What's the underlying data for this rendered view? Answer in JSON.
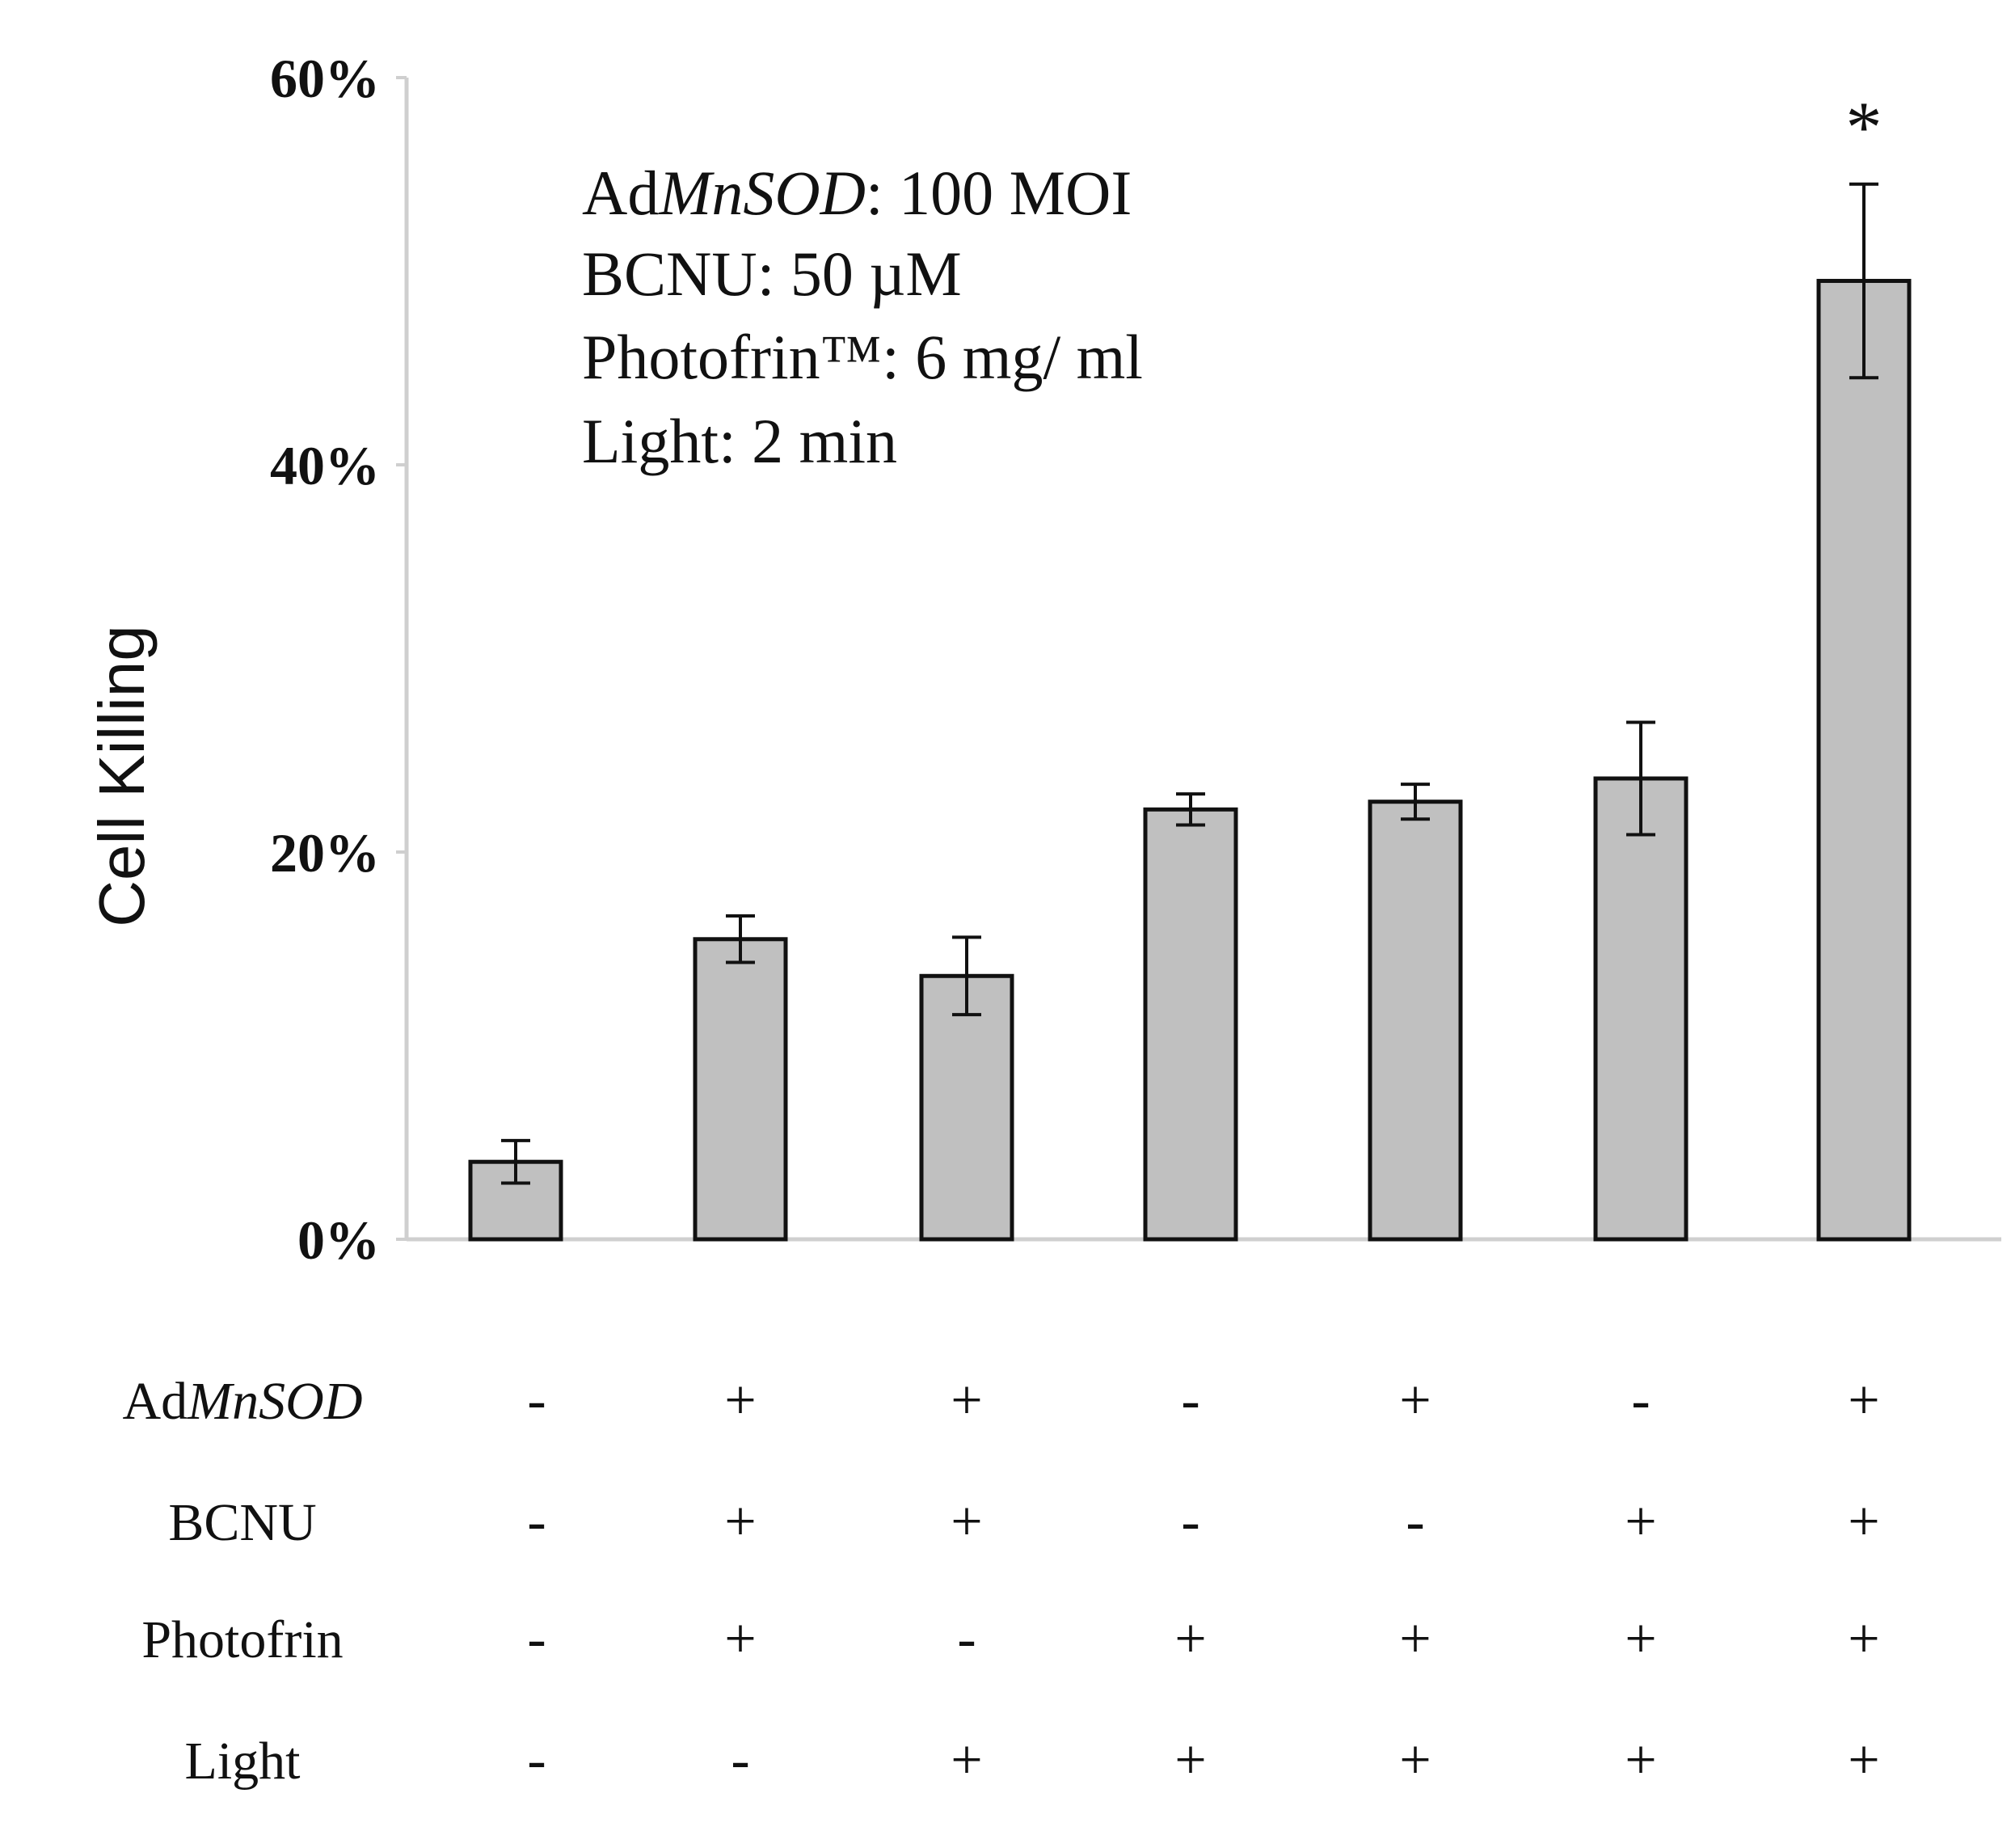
{
  "chart_data": {
    "type": "bar",
    "title": "",
    "xlabel": "",
    "ylabel": "Cell Killing",
    "ylim": [
      0,
      60
    ],
    "yticks": [
      "0%",
      "20%",
      "40%",
      "60%"
    ],
    "ytick_values": [
      0,
      20,
      40,
      60
    ],
    "values": [
      4.0,
      15.5,
      13.6,
      22.2,
      22.6,
      23.8,
      49.5
    ],
    "errors": [
      1.1,
      1.2,
      2.0,
      0.8,
      0.9,
      2.9,
      5.0
    ],
    "bar_color": "#c0c0c0",
    "significance": [
      "",
      "",
      "",
      "",
      "",
      "",
      "*"
    ],
    "annotation": {
      "admnsod_prefix": "Ad",
      "admnsod_italic": "MnSOD",
      "admnsod_value": ": 100 MOI",
      "bcnu": "BCNU: 50 µM",
      "photofrin": "Photofrin™: 6 mg/ ml",
      "light": "Light: 2 min"
    },
    "conditions": [
      {
        "label_prefix": "Ad",
        "label_italic": "MnSOD",
        "label": "",
        "signs": [
          "-",
          "+",
          "+",
          "-",
          "+",
          "-",
          "+"
        ]
      },
      {
        "label_prefix": "",
        "label_italic": "",
        "label": "BCNU",
        "signs": [
          "-",
          "+",
          "+",
          "-",
          "-",
          "+",
          "+"
        ]
      },
      {
        "label_prefix": "",
        "label_italic": "",
        "label": "Photofrin",
        "signs": [
          "-",
          "+",
          "-",
          "+",
          "+",
          "+",
          "+"
        ]
      },
      {
        "label_prefix": "",
        "label_italic": "",
        "label": "Light",
        "signs": [
          "-",
          "-",
          "+",
          "+",
          "+",
          "+",
          "+"
        ]
      }
    ]
  }
}
